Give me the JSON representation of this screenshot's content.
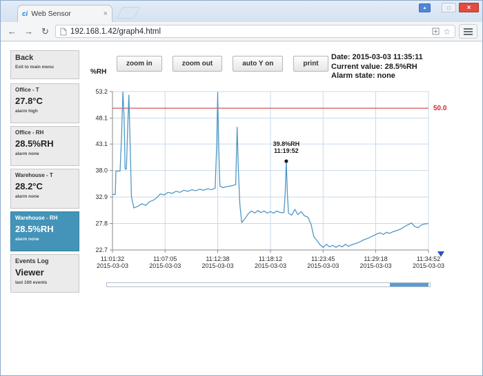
{
  "browser": {
    "tab_title": "Web Sensor",
    "url": "192.168.1.42/graph4.html",
    "icons": {
      "favicon": "ci",
      "tab_close": "×",
      "profile": "▴",
      "maximize": "□",
      "close": "×",
      "back": "←",
      "forward": "→",
      "reload": "↻",
      "star": "☆"
    }
  },
  "toolbar": {
    "buttons": [
      "zoom in",
      "zoom out",
      "auto Y on",
      "print"
    ]
  },
  "status": {
    "lines": [
      "Date: 2015-03-03 11:35:11",
      "Current value: 28.5%RH",
      "Alarm state: none"
    ]
  },
  "sidebar": {
    "items": [
      {
        "title": "Back",
        "value": "",
        "sub": "Exit to main menu",
        "selected": false
      },
      {
        "title": "Office - T",
        "value": "27.8°C",
        "sub": "alarm high",
        "selected": false
      },
      {
        "title": "Office - RH",
        "value": "28.5%RH",
        "sub": "alarm none",
        "selected": false
      },
      {
        "title": "Warehouse - T",
        "value": "28.2°C",
        "sub": "alarm none",
        "selected": false
      },
      {
        "title": "Warehouse - RH",
        "value": "28.5%RH",
        "sub": "alarm none",
        "selected": true
      },
      {
        "title": "Events Log",
        "value": "Viewer",
        "sub": "last 100 events",
        "selected": false
      }
    ]
  },
  "scrollbar": {
    "thumb_start_pct": 87.5,
    "thumb_width_pct": 12
  },
  "chart_data": {
    "type": "line",
    "ylabel": "%RH",
    "ylim": [
      22.7,
      53.2
    ],
    "y_ticks": [
      "53.2",
      "48.1",
      "43.1",
      "38.0",
      "32.9",
      "27.8",
      "22.7"
    ],
    "x_range_seconds": [
      0,
      2000
    ],
    "x_ticks": [
      {
        "t": 0,
        "time": "11:01:32",
        "date": "2015-03-03"
      },
      {
        "t": 333,
        "time": "11:07:05",
        "date": "2015-03-03"
      },
      {
        "t": 666,
        "time": "11:12:38",
        "date": "2015-03-03"
      },
      {
        "t": 1000,
        "time": "11:18:12",
        "date": "2015-03-03"
      },
      {
        "t": 1333,
        "time": "11:23:45",
        "date": "2015-03-03"
      },
      {
        "t": 1666,
        "time": "11:29:18",
        "date": "2015-03-03"
      },
      {
        "t": 2000,
        "time": "11:34:52",
        "date": "2015-03-03"
      }
    ],
    "grid": true,
    "legend": "none",
    "alarm_line": {
      "value": 50.0,
      "label": "50.0",
      "color": "#cc2a2a"
    },
    "annotation": {
      "t": 1100,
      "value": 39.8,
      "lines": [
        "39.8%RH",
        "11:19:52"
      ]
    },
    "colors": {
      "grid": "#c9d9e9",
      "axis": "#8a8a8a",
      "label": "#2a2a2a",
      "marker_triangle": "#2b50cc"
    },
    "series": [
      {
        "name": "Warehouse - RH",
        "color": "#4f97c5",
        "points": [
          [
            0,
            33.4
          ],
          [
            18,
            33.4
          ],
          [
            22,
            37.9
          ],
          [
            48,
            37.9
          ],
          [
            58,
            45.0
          ],
          [
            66,
            53.2
          ],
          [
            74,
            48.0
          ],
          [
            80,
            38.3
          ],
          [
            88,
            38.3
          ],
          [
            96,
            46.0
          ],
          [
            104,
            52.6
          ],
          [
            112,
            43.0
          ],
          [
            120,
            33.0
          ],
          [
            135,
            30.8
          ],
          [
            160,
            31.1
          ],
          [
            185,
            31.6
          ],
          [
            210,
            31.3
          ],
          [
            235,
            32.0
          ],
          [
            260,
            32.3
          ],
          [
            282,
            32.8
          ],
          [
            302,
            33.5
          ],
          [
            327,
            33.3
          ],
          [
            352,
            33.8
          ],
          [
            377,
            33.6
          ],
          [
            402,
            34.0
          ],
          [
            427,
            33.8
          ],
          [
            452,
            34.2
          ],
          [
            477,
            34.0
          ],
          [
            502,
            34.3
          ],
          [
            527,
            34.1
          ],
          [
            552,
            34.4
          ],
          [
            577,
            34.2
          ],
          [
            602,
            34.5
          ],
          [
            627,
            34.3
          ],
          [
            650,
            34.6
          ],
          [
            660,
            43.0
          ],
          [
            666,
            53.1
          ],
          [
            672,
            43.0
          ],
          [
            680,
            35.0
          ],
          [
            700,
            34.7
          ],
          [
            722,
            34.9
          ],
          [
            746,
            35.0
          ],
          [
            770,
            35.2
          ],
          [
            780,
            35.3
          ],
          [
            789,
            46.4
          ],
          [
            797,
            38.0
          ],
          [
            806,
            31.5
          ],
          [
            818,
            28.0
          ],
          [
            840,
            28.8
          ],
          [
            860,
            29.7
          ],
          [
            880,
            30.2
          ],
          [
            900,
            29.8
          ],
          [
            920,
            30.3
          ],
          [
            940,
            29.9
          ],
          [
            960,
            30.2
          ],
          [
            980,
            29.8
          ],
          [
            1000,
            30.1
          ],
          [
            1020,
            29.8
          ],
          [
            1040,
            30.2
          ],
          [
            1062,
            29.9
          ],
          [
            1085,
            29.9
          ],
          [
            1093,
            33.5
          ],
          [
            1100,
            39.8
          ],
          [
            1107,
            33.5
          ],
          [
            1114,
            29.8
          ],
          [
            1134,
            29.4
          ],
          [
            1154,
            30.5
          ],
          [
            1174,
            29.5
          ],
          [
            1194,
            30.1
          ],
          [
            1214,
            29.3
          ],
          [
            1238,
            29.0
          ],
          [
            1258,
            27.5
          ],
          [
            1274,
            25.3
          ],
          [
            1294,
            24.5
          ],
          [
            1314,
            23.7
          ],
          [
            1334,
            23.2
          ],
          [
            1354,
            23.8
          ],
          [
            1374,
            23.3
          ],
          [
            1394,
            23.6
          ],
          [
            1414,
            23.2
          ],
          [
            1434,
            23.6
          ],
          [
            1454,
            23.3
          ],
          [
            1474,
            23.8
          ],
          [
            1494,
            23.4
          ],
          [
            1514,
            23.7
          ],
          [
            1534,
            23.9
          ],
          [
            1554,
            24.1
          ],
          [
            1574,
            24.4
          ],
          [
            1594,
            24.7
          ],
          [
            1614,
            24.9
          ],
          [
            1634,
            25.2
          ],
          [
            1654,
            25.5
          ],
          [
            1674,
            25.8
          ],
          [
            1694,
            26.0
          ],
          [
            1714,
            25.7
          ],
          [
            1734,
            26.1
          ],
          [
            1754,
            25.9
          ],
          [
            1774,
            26.2
          ],
          [
            1794,
            26.4
          ],
          [
            1814,
            26.6
          ],
          [
            1834,
            26.9
          ],
          [
            1854,
            27.3
          ],
          [
            1874,
            27.6
          ],
          [
            1892,
            27.9
          ],
          [
            1914,
            27.2
          ],
          [
            1934,
            27.0
          ],
          [
            1954,
            27.5
          ],
          [
            1974,
            27.7
          ],
          [
            2000,
            27.8
          ]
        ]
      }
    ]
  }
}
